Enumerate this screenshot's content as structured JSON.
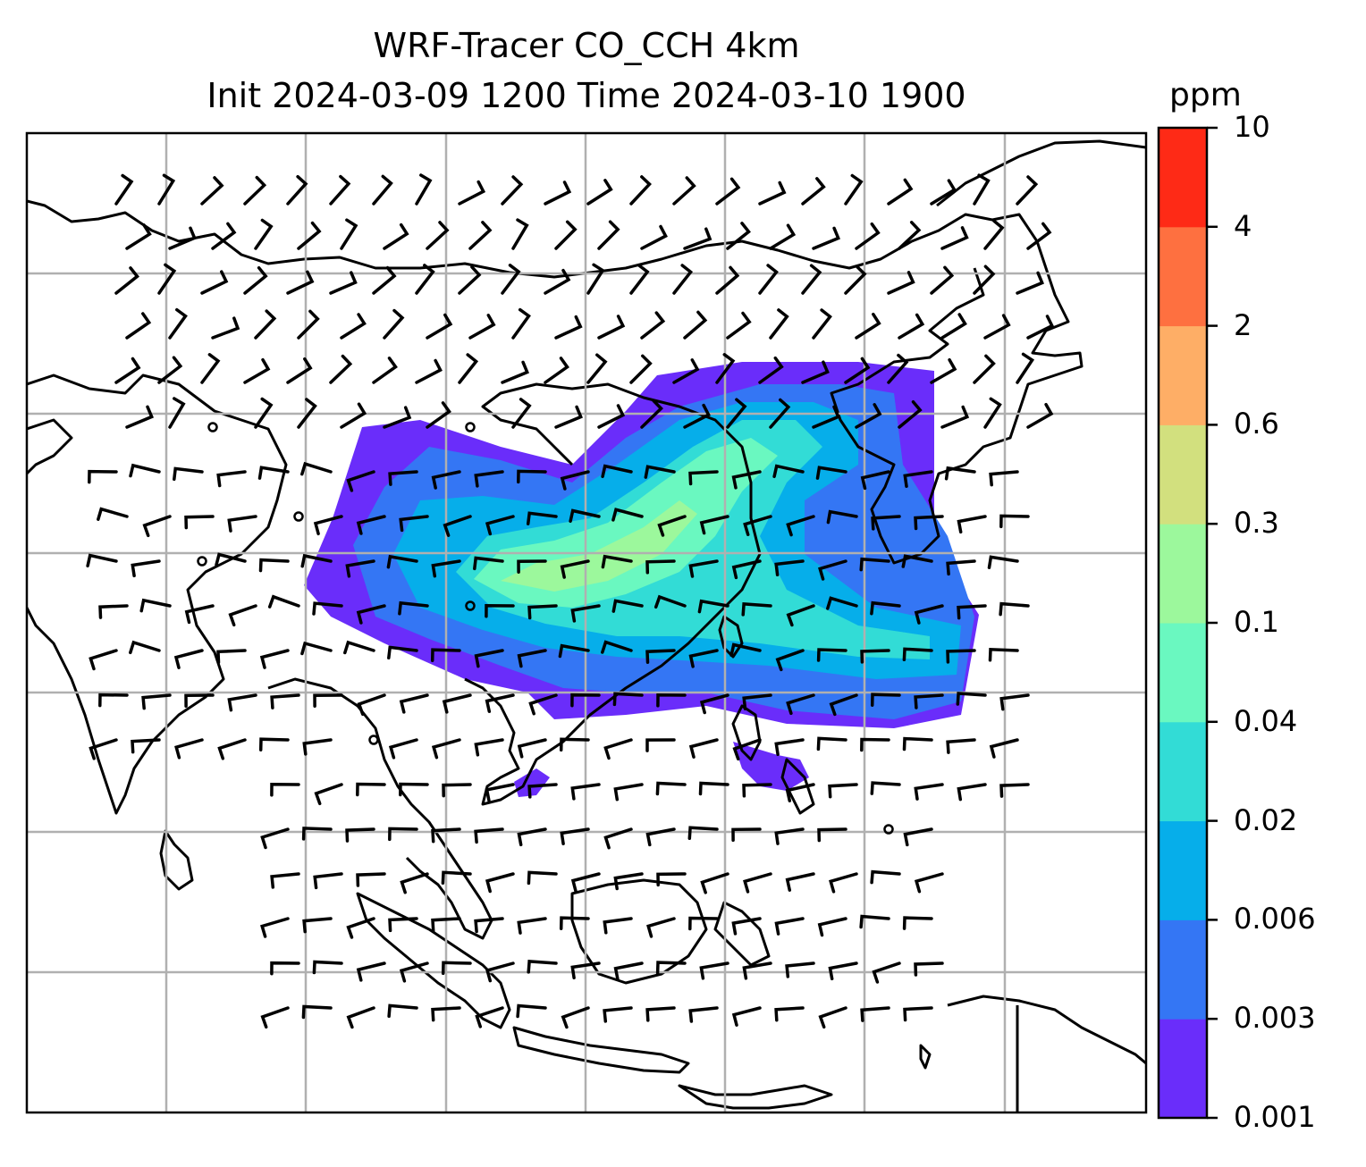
{
  "title_line1": "WRF-Tracer CO_CCH 4km",
  "title_line2": "Init 2024-03-09 1200 Time 2024-03-10 1900",
  "colorbar": {
    "units": "ppm",
    "levels": [
      "0.001",
      "0.003",
      "0.006",
      "0.02",
      "0.04",
      "0.1",
      "0.3",
      "0.6",
      "2",
      "4",
      "10"
    ],
    "colors": [
      "#6a2dfa",
      "#3476f4",
      "#06aeea",
      "#32dcd6",
      "#6af8c0",
      "#9cf89c",
      "#d2e07e",
      "#feae66",
      "#fe7040",
      "#fe2a16"
    ]
  },
  "map": {
    "gridlines": true,
    "land_outline_color": "#000000",
    "grid_color": "#b0b0b0",
    "overlay": "wind barbs"
  }
}
